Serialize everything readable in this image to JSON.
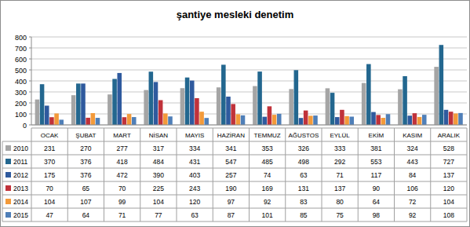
{
  "chart_data": {
    "type": "bar",
    "title": "şantiye mesleki denetim",
    "categories": [
      "OCAK",
      "ŞUBAT",
      "MART",
      "NİSAN",
      "MAYIS",
      "HAZİRAN",
      "TEMMUZ",
      "AĞUSTOS",
      "EYLÜL",
      "EKİM",
      "KASIM",
      "ARALIK"
    ],
    "series": [
      {
        "name": "2010",
        "color": "#a5a5a5",
        "values": [
          231,
          270,
          277,
          317,
          334,
          341,
          353,
          326,
          333,
          381,
          324,
          528
        ]
      },
      {
        "name": "2011",
        "color": "#23678f",
        "values": [
          370,
          376,
          418,
          484,
          431,
          547,
          485,
          498,
          292,
          553,
          443,
          727
        ]
      },
      {
        "name": "2012",
        "color": "#2f5a9e",
        "values": [
          175,
          376,
          472,
          390,
          403,
          257,
          74,
          63,
          71,
          117,
          84,
          137
        ]
      },
      {
        "name": "2013",
        "color": "#c0323a",
        "values": [
          70,
          65,
          70,
          225,
          243,
          190,
          169,
          131,
          137,
          90,
          106,
          120
        ]
      },
      {
        "name": "2014",
        "color": "#f39a3a",
        "values": [
          104,
          107,
          99,
          104,
          120,
          97,
          92,
          83,
          80,
          64,
          72,
          104
        ]
      },
      {
        "name": "2015",
        "color": "#4f7fb8",
        "values": [
          47,
          64,
          71,
          77,
          63,
          87,
          101,
          85,
          75,
          98,
          92,
          108
        ]
      }
    ],
    "ylim": [
      0,
      800
    ],
    "yticks": [
      0,
      100,
      200,
      300,
      400,
      500,
      600,
      700,
      800
    ],
    "grid": true
  }
}
